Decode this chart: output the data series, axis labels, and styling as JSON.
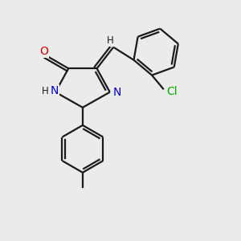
{
  "background_color": "#ebebeb",
  "bond_color": "#1a1a1a",
  "bond_width": 1.6,
  "atom_colors": {
    "O": "#cc0000",
    "N": "#0000cc",
    "Cl": "#00aa00",
    "C": "#1a1a1a",
    "H": "#1a1a1a"
  },
  "font_size_atoms": 10,
  "font_size_small": 8.5
}
